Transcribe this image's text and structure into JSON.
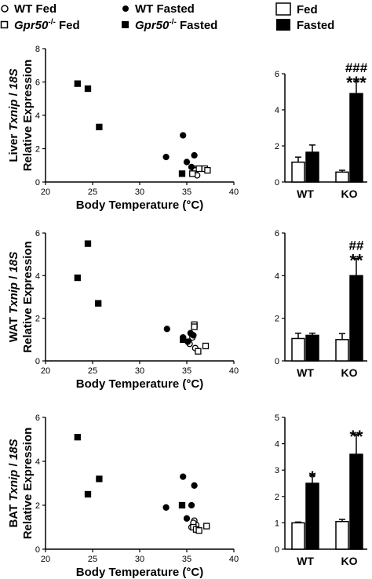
{
  "legend": {
    "scatter": [
      {
        "label": "WT Fed",
        "marker": "open-circle"
      },
      {
        "label": "WT Fasted",
        "marker": "filled-circle"
      },
      {
        "label": "Gpr50",
        "sup": "-/-",
        "suffix": " Fed",
        "marker": "open-square"
      },
      {
        "label": "Gpr50",
        "sup": "-/-",
        "suffix": " Fasted",
        "marker": "filled-square"
      }
    ],
    "bar": [
      {
        "label": "Fed",
        "fill": "#ffffff"
      },
      {
        "label": "Fasted",
        "fill": "#000000"
      }
    ]
  },
  "chart_data": [
    {
      "type": "scatter",
      "panel": "liver",
      "ylabel_prefix": "Liver ",
      "ylabel_gene": "Txnip",
      "ylabel_suffix": " / ",
      "ylabel_ref": "18S",
      "ylabel2": "Relative Expression",
      "xlabel": "Body Temperature (°C)",
      "xlim": [
        20,
        40
      ],
      "ylim": [
        0,
        8
      ],
      "xticks": [
        "20",
        "25",
        "30",
        "35",
        "40"
      ],
      "yticks": [
        "0",
        "2",
        "4",
        "6",
        "8"
      ],
      "series": [
        {
          "name": "WT Fed",
          "points": [
            [
              35.8,
              0.8
            ],
            [
              35.9,
              0.5
            ],
            [
              36.1,
              0.4
            ],
            [
              35.9,
              0.7
            ]
          ]
        },
        {
          "name": "WT Fasted",
          "points": [
            [
              32.8,
              1.5
            ],
            [
              34.6,
              2.8
            ],
            [
              35.0,
              1.2
            ],
            [
              35.8,
              1.6
            ],
            [
              35.5,
              0.9
            ]
          ]
        },
        {
          "name": "Gpr50-/- Fed",
          "points": [
            [
              35.6,
              0.5
            ],
            [
              36.3,
              0.8
            ],
            [
              36.9,
              0.8
            ],
            [
              37.2,
              0.7
            ]
          ]
        },
        {
          "name": "Gpr50-/- Fasted",
          "points": [
            [
              23.4,
              5.9
            ],
            [
              24.5,
              5.6
            ],
            [
              25.7,
              3.3
            ],
            [
              34.5,
              0.5
            ]
          ]
        }
      ]
    },
    {
      "type": "bar",
      "panel": "liver",
      "categories": [
        "WT",
        "KO"
      ],
      "ylim": [
        0,
        6
      ],
      "yticks": [
        "0",
        "2",
        "4",
        "6"
      ],
      "series": [
        {
          "name": "Fed",
          "values": [
            1.1,
            0.55
          ],
          "errors": [
            0.28,
            0.1
          ]
        },
        {
          "name": "Fasted",
          "values": [
            1.65,
            4.9
          ],
          "errors": [
            0.4,
            0.7
          ]
        }
      ],
      "annotations": {
        "KO": {
          "stars": "***",
          "hashes": "###"
        }
      }
    },
    {
      "type": "scatter",
      "panel": "wat",
      "ylabel_prefix": "WAT ",
      "ylabel_gene": "Txnip",
      "ylabel_suffix": " / ",
      "ylabel_ref": "18S",
      "ylabel2": "Relative Expression",
      "xlabel": "Body Temperature (°C)",
      "xlim": [
        20,
        40
      ],
      "ylim": [
        0,
        6
      ],
      "xticks": [
        "20",
        "25",
        "30",
        "35",
        "40"
      ],
      "yticks": [
        "0",
        "2",
        "4",
        "6"
      ],
      "series": [
        {
          "name": "WT Fed",
          "points": [
            [
              35.2,
              0.9
            ],
            [
              35.9,
              0.6
            ],
            [
              35.6,
              1.1
            ],
            [
              35.3,
              0.8
            ]
          ]
        },
        {
          "name": "WT Fasted",
          "points": [
            [
              32.9,
              1.5
            ],
            [
              34.6,
              1.1
            ],
            [
              35.1,
              0.9
            ],
            [
              35.7,
              1.2
            ],
            [
              35.4,
              1.3
            ]
          ]
        },
        {
          "name": "Gpr50-/- Fed",
          "points": [
            [
              35.8,
              1.7
            ],
            [
              35.8,
              1.6
            ],
            [
              36.2,
              0.45
            ],
            [
              37.0,
              0.7
            ]
          ]
        },
        {
          "name": "Gpr50-/- Fasted",
          "points": [
            [
              23.4,
              3.9
            ],
            [
              24.5,
              5.5
            ],
            [
              25.6,
              2.7
            ],
            [
              34.6,
              1.0
            ]
          ]
        }
      ]
    },
    {
      "type": "bar",
      "panel": "wat",
      "categories": [
        "WT",
        "KO"
      ],
      "ylim": [
        0,
        6
      ],
      "yticks": [
        "0",
        "2",
        "4",
        "6"
      ],
      "series": [
        {
          "name": "Fed",
          "values": [
            1.05,
            1.0
          ],
          "errors": [
            0.25,
            0.28
          ]
        },
        {
          "name": "Fasted",
          "values": [
            1.2,
            4.0
          ],
          "errors": [
            0.1,
            0.8
          ]
        }
      ],
      "annotations": {
        "KO": {
          "stars": "**",
          "hashes": "##"
        }
      }
    },
    {
      "type": "scatter",
      "panel": "bat",
      "ylabel_prefix": "BAT ",
      "ylabel_gene": "Txnip",
      "ylabel_suffix": " / ",
      "ylabel_ref": "18S",
      "ylabel2": "Relative Expression",
      "xlabel": "Body Temperature (°C)",
      "xlim": [
        20,
        40
      ],
      "ylim": [
        0,
        6
      ],
      "xticks": [
        "20",
        "25",
        "30",
        "35",
        "40"
      ],
      "yticks": [
        "0",
        "2",
        "4",
        "6"
      ],
      "series": [
        {
          "name": "WT Fed",
          "points": [
            [
              35.5,
              1.0
            ],
            [
              35.8,
              1.3
            ],
            [
              36.0,
              1.1
            ],
            [
              35.7,
              1.2
            ]
          ]
        },
        {
          "name": "WT Fasted",
          "points": [
            [
              32.8,
              1.9
            ],
            [
              34.6,
              3.3
            ],
            [
              35.8,
              2.9
            ],
            [
              35.5,
              2.0
            ],
            [
              35.0,
              1.4
            ]
          ]
        },
        {
          "name": "Gpr50-/- Fed",
          "points": [
            [
              35.7,
              1.0
            ],
            [
              36.0,
              0.9
            ],
            [
              36.3,
              0.85
            ],
            [
              37.1,
              1.05
            ]
          ]
        },
        {
          "name": "Gpr50-/- Fasted",
          "points": [
            [
              23.4,
              5.1
            ],
            [
              24.5,
              2.5
            ],
            [
              25.7,
              3.2
            ],
            [
              34.5,
              2.0
            ]
          ]
        }
      ]
    },
    {
      "type": "bar",
      "panel": "bat",
      "categories": [
        "WT",
        "KO"
      ],
      "ylim": [
        0,
        5
      ],
      "yticks": [
        "0",
        "1",
        "2",
        "3",
        "4",
        "5"
      ],
      "series": [
        {
          "name": "Fed",
          "values": [
            1.0,
            1.05
          ],
          "errors": [
            0.03,
            0.08
          ]
        },
        {
          "name": "Fasted",
          "values": [
            2.5,
            3.6
          ],
          "errors": [
            0.3,
            0.75
          ]
        }
      ],
      "annotations": {
        "WT": {
          "stars": "*"
        },
        "KO": {
          "stars": "**"
        }
      }
    }
  ]
}
